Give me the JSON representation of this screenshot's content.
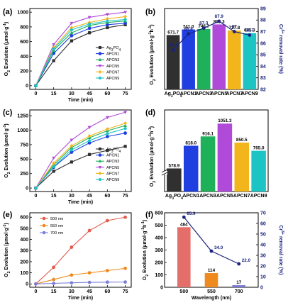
{
  "colors": {
    "Ag3PO4": "#303030",
    "APCN1": "#1f3fe0",
    "APCN3": "#1fb05a",
    "APCN5": "#b04ad8",
    "APCN7": "#f2b51b",
    "APCN9": "#1dc4c4",
    "removal_line": "#1a237e",
    "nm500": "#e25d4f",
    "nm550": "#ee8a1e",
    "nm700": "#7d7fd6",
    "bar500": "#e46f6a",
    "bar550": "#ef8a1e",
    "bar700": "#7d7fd6"
  },
  "chart_data": [
    {
      "panel": "(a)",
      "type": "line",
      "xlabel": "Time (min)",
      "ylabel": "O2 Evolution (μmol·g⁻¹)",
      "x": [
        0,
        15,
        30,
        45,
        60,
        75
      ],
      "xlim": [
        -5,
        80
      ],
      "ylim": [
        -50,
        1050
      ],
      "yticks": [
        0,
        200,
        400,
        600,
        800,
        1000
      ],
      "legend_position": "bottom-right",
      "series": [
        {
          "name": "Ag3PO4",
          "values": [
            0,
            340,
            610,
            720,
            790,
            830
          ]
        },
        {
          "name": "APCN1",
          "values": [
            0,
            440,
            680,
            780,
            830,
            850
          ]
        },
        {
          "name": "APCN3",
          "values": [
            0,
            480,
            720,
            820,
            860,
            880
          ]
        },
        {
          "name": "APCN5",
          "values": [
            0,
            560,
            850,
            930,
            970,
            1000
          ]
        },
        {
          "name": "APCN7",
          "values": [
            0,
            520,
            790,
            860,
            910,
            940
          ]
        },
        {
          "name": "APCN9",
          "values": [
            0,
            500,
            760,
            840,
            880,
            900
          ]
        }
      ]
    },
    {
      "panel": "(b)",
      "type": "bar",
      "ylabel": "O2 Evolution (μmol·g⁻¹h⁻¹)",
      "y2label": "Cr6+ removal rate (%)",
      "categories": [
        "Ag3PO4",
        "APCN1",
        "APCN3",
        "APCN5",
        "APCN7",
        "APCN9"
      ],
      "values": [
        671.7,
        741.0,
        746.7,
        803.3,
        727.8,
        695.3
      ],
      "bar_value_labels": [
        "671.7",
        "741.0",
        "746.7",
        "803.3",
        "727.8",
        "695.3"
      ],
      "ylim": [
        0,
        1000
      ],
      "removal_rate": [
        85.4,
        86.8,
        87.3,
        87.9,
        87.0,
        86.7
      ],
      "removal_labels": [
        "85.4",
        "86.8",
        "87.3",
        "87.9",
        "87",
        "86.7"
      ],
      "y2lim": [
        82,
        89
      ],
      "y2ticks": [
        82,
        83,
        84,
        85,
        86,
        87,
        88,
        89
      ]
    },
    {
      "panel": "(c)",
      "type": "line",
      "xlabel": "Time (min)",
      "ylabel": "O2 Evolution (μmol·g⁻¹)",
      "x": [
        0,
        15,
        30,
        45,
        60,
        75
      ],
      "xlim": [
        -5,
        80
      ],
      "ylim": [
        -60,
        1350
      ],
      "yticks": [
        0,
        250,
        500,
        750,
        1000,
        1250
      ],
      "legend_position": "bottom-right",
      "series": [
        {
          "name": "Ag3PO4",
          "values": [
            0,
            290,
            450,
            580,
            650,
            720
          ]
        },
        {
          "name": "APCN1",
          "values": [
            0,
            360,
            620,
            780,
            890,
            950
          ]
        },
        {
          "name": "APCN3",
          "values": [
            0,
            400,
            700,
            870,
            990,
            1080
          ]
        },
        {
          "name": "APCN5",
          "values": [
            0,
            520,
            830,
            1050,
            1220,
            1310
          ]
        },
        {
          "name": "APCN7",
          "values": [
            0,
            430,
            730,
            900,
            1020,
            1120
          ]
        },
        {
          "name": "APCN9",
          "values": [
            0,
            370,
            660,
            820,
            940,
            1030
          ]
        }
      ]
    },
    {
      "panel": "(d)",
      "type": "bar",
      "ylabel": "O2 Evolution (μmol·g⁻¹h⁻¹)",
      "categories": [
        "Ag3PO4",
        "APCN1",
        "APCN3",
        "APCN5",
        "APCN7",
        "APCN9"
      ],
      "values": [
        578.9,
        818.0,
        916.1,
        1051.3,
        850.5,
        765.0
      ],
      "bar_value_labels": [
        "578.9",
        "818.0",
        "916.1",
        "1051.3",
        "850.5",
        "765.0"
      ],
      "ylim": [
        0,
        1200
      ]
    },
    {
      "panel": "(e)",
      "type": "line",
      "xlabel": "Time (min)",
      "ylabel": "O2 Evolution (μmol·g⁻¹)",
      "x": [
        0,
        15,
        30,
        45,
        60,
        75
      ],
      "xlim": [
        -5,
        80
      ],
      "ylim": [
        -30,
        640
      ],
      "yticks": [
        0,
        100,
        200,
        300,
        400,
        500,
        600
      ],
      "legend_position": "top-left",
      "series": [
        {
          "name": "500 nm",
          "values": [
            0,
            150,
            330,
            480,
            570,
            600
          ]
        },
        {
          "name": "550 nm",
          "values": [
            0,
            40,
            80,
            100,
            120,
            140
          ]
        },
        {
          "name": "700 nm",
          "values": [
            0,
            5,
            10,
            14,
            16,
            17
          ]
        }
      ]
    },
    {
      "panel": "(f)",
      "type": "bar",
      "xlabel": "Wavelength (nm)",
      "ylabel": "O2 Evolution (μmol·g⁻¹h⁻¹)",
      "y2label": "Cr6+ removal rate (%)",
      "categories": [
        "500",
        "550",
        "700"
      ],
      "values": [
        484,
        114,
        17
      ],
      "bar_value_labels": [
        "484",
        "114",
        "17"
      ],
      "ylim": [
        0,
        600
      ],
      "yticks": [
        0,
        100,
        200,
        300,
        400,
        500,
        600
      ],
      "removal_rate": [
        65.9,
        34.0,
        22.0
      ],
      "removal_labels": [
        "65.9",
        "34.0",
        "22.0"
      ],
      "y2lim": [
        0,
        70
      ],
      "y2ticks": [
        0,
        10,
        20,
        30,
        40,
        50,
        60,
        70
      ]
    }
  ]
}
